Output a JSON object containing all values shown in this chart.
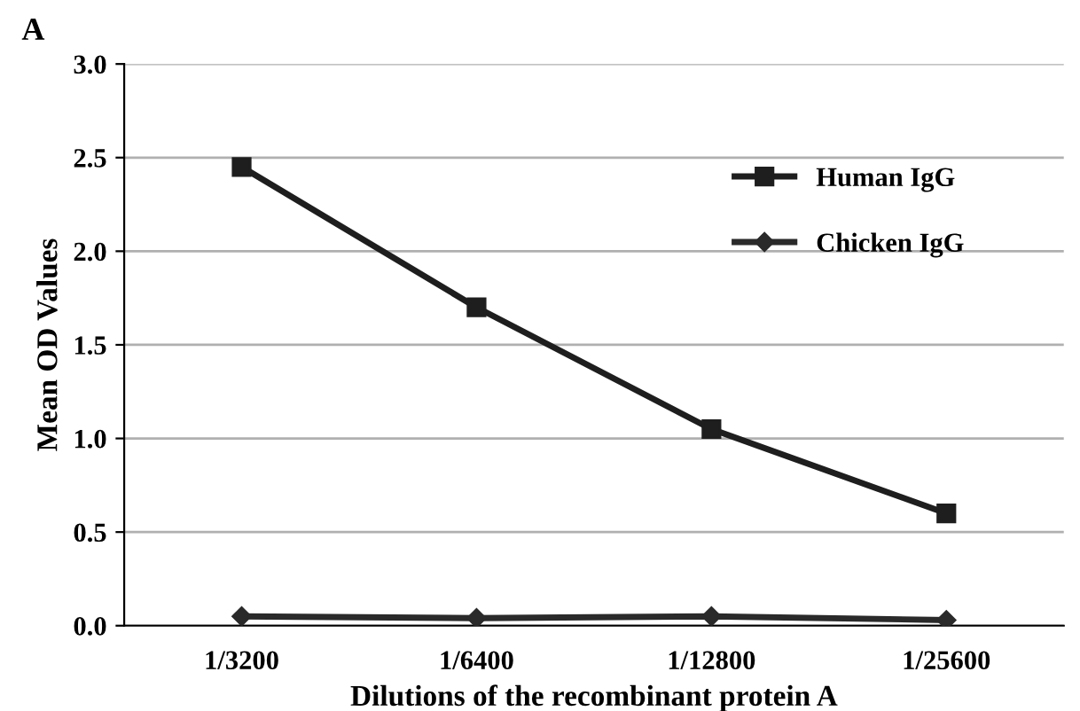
{
  "chart_data": {
    "type": "line",
    "title": "A",
    "xlabel": "Dilutions of the recombinant protein A",
    "ylabel": "Mean OD Values",
    "categories": [
      "1/3200",
      "1/6400",
      "1/12800",
      "1/25600"
    ],
    "series": [
      {
        "name": "Human IgG",
        "color": "#1e1e1e",
        "marker": "square",
        "values": [
          2.45,
          1.7,
          1.05,
          0.6
        ]
      },
      {
        "name": "Chicken IgG",
        "color": "#2a2a2a",
        "marker": "diamond",
        "values": [
          0.05,
          0.04,
          0.05,
          0.03
        ]
      }
    ],
    "ylim": [
      0,
      3
    ],
    "yticks": [
      {
        "value": 0,
        "label": "0.0"
      },
      {
        "value": 0.5,
        "label": "0.5"
      },
      {
        "value": 1,
        "label": "1.0"
      },
      {
        "value": 1.5,
        "label": "1.5"
      },
      {
        "value": 2,
        "label": "2.0"
      },
      {
        "value": 2.5,
        "label": "2.5"
      },
      {
        "value": 3,
        "label": "3.0"
      }
    ],
    "grid": "y",
    "legend": "top right",
    "line_style": "solid"
  }
}
